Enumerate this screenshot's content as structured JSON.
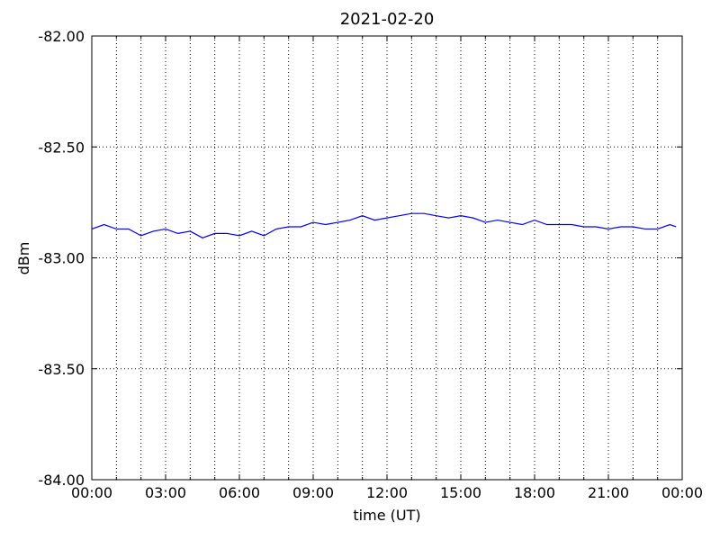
{
  "chart_data": {
    "type": "line",
    "title": "2021-02-20",
    "xlabel": "time (UT)",
    "ylabel": "dBm",
    "x": [
      0,
      0.5,
      1,
      1.5,
      2,
      2.5,
      3,
      3.5,
      4,
      4.5,
      5,
      5.5,
      6,
      6.5,
      7,
      7.5,
      8,
      8.5,
      9,
      9.5,
      10,
      10.5,
      11,
      11.5,
      12,
      12.5,
      13,
      13.5,
      14,
      14.5,
      15,
      15.5,
      16,
      16.5,
      17,
      17.5,
      18,
      18.5,
      19,
      19.5,
      20,
      20.5,
      21,
      21.5,
      22,
      22.5,
      23,
      23.5,
      23.75
    ],
    "series": [
      {
        "color": "#0000ff",
        "values": [
          -82.87,
          -82.85,
          -82.87,
          -82.87,
          -82.9,
          -82.88,
          -82.87,
          -82.89,
          -82.88,
          -82.91,
          -82.89,
          -82.89,
          -82.9,
          -82.88,
          -82.9,
          -82.87,
          -82.86,
          -82.86,
          -82.84,
          -82.85,
          -82.84,
          -82.83,
          -82.81,
          -82.83,
          -82.82,
          -82.81,
          -82.8,
          -82.8,
          -82.81,
          -82.82,
          -82.81,
          -82.82,
          -82.84,
          -82.83,
          -82.84,
          -82.85,
          -82.83,
          -82.85,
          -82.85,
          -82.85,
          -82.86,
          -82.86,
          -82.87,
          -82.86,
          -82.86,
          -82.87,
          -82.87,
          -82.85,
          -82.86
        ]
      }
    ],
    "xlim": [
      0,
      24
    ],
    "xticks": [
      {
        "value": 0,
        "label": "00:00"
      },
      {
        "value": 3,
        "label": "03:00"
      },
      {
        "value": 6,
        "label": "06:00"
      },
      {
        "value": 9,
        "label": "09:00"
      },
      {
        "value": 12,
        "label": "12:00"
      },
      {
        "value": 15,
        "label": "15:00"
      },
      {
        "value": 18,
        "label": "18:00"
      },
      {
        "value": 21,
        "label": "21:00"
      },
      {
        "value": 24,
        "label": "00:00"
      }
    ],
    "xminorticks": [
      1,
      2,
      4,
      5,
      7,
      8,
      10,
      11,
      13,
      14,
      16,
      17,
      19,
      20,
      22,
      23
    ],
    "ylim": [
      -84,
      -82
    ],
    "yticks": [
      {
        "value": -84,
        "label": "-84.00"
      },
      {
        "value": -83.5,
        "label": "-83.50"
      },
      {
        "value": -83,
        "label": "-83.00"
      },
      {
        "value": -82.5,
        "label": "-82.50"
      },
      {
        "value": -82,
        "label": "-82.00"
      }
    ],
    "grid": true
  }
}
